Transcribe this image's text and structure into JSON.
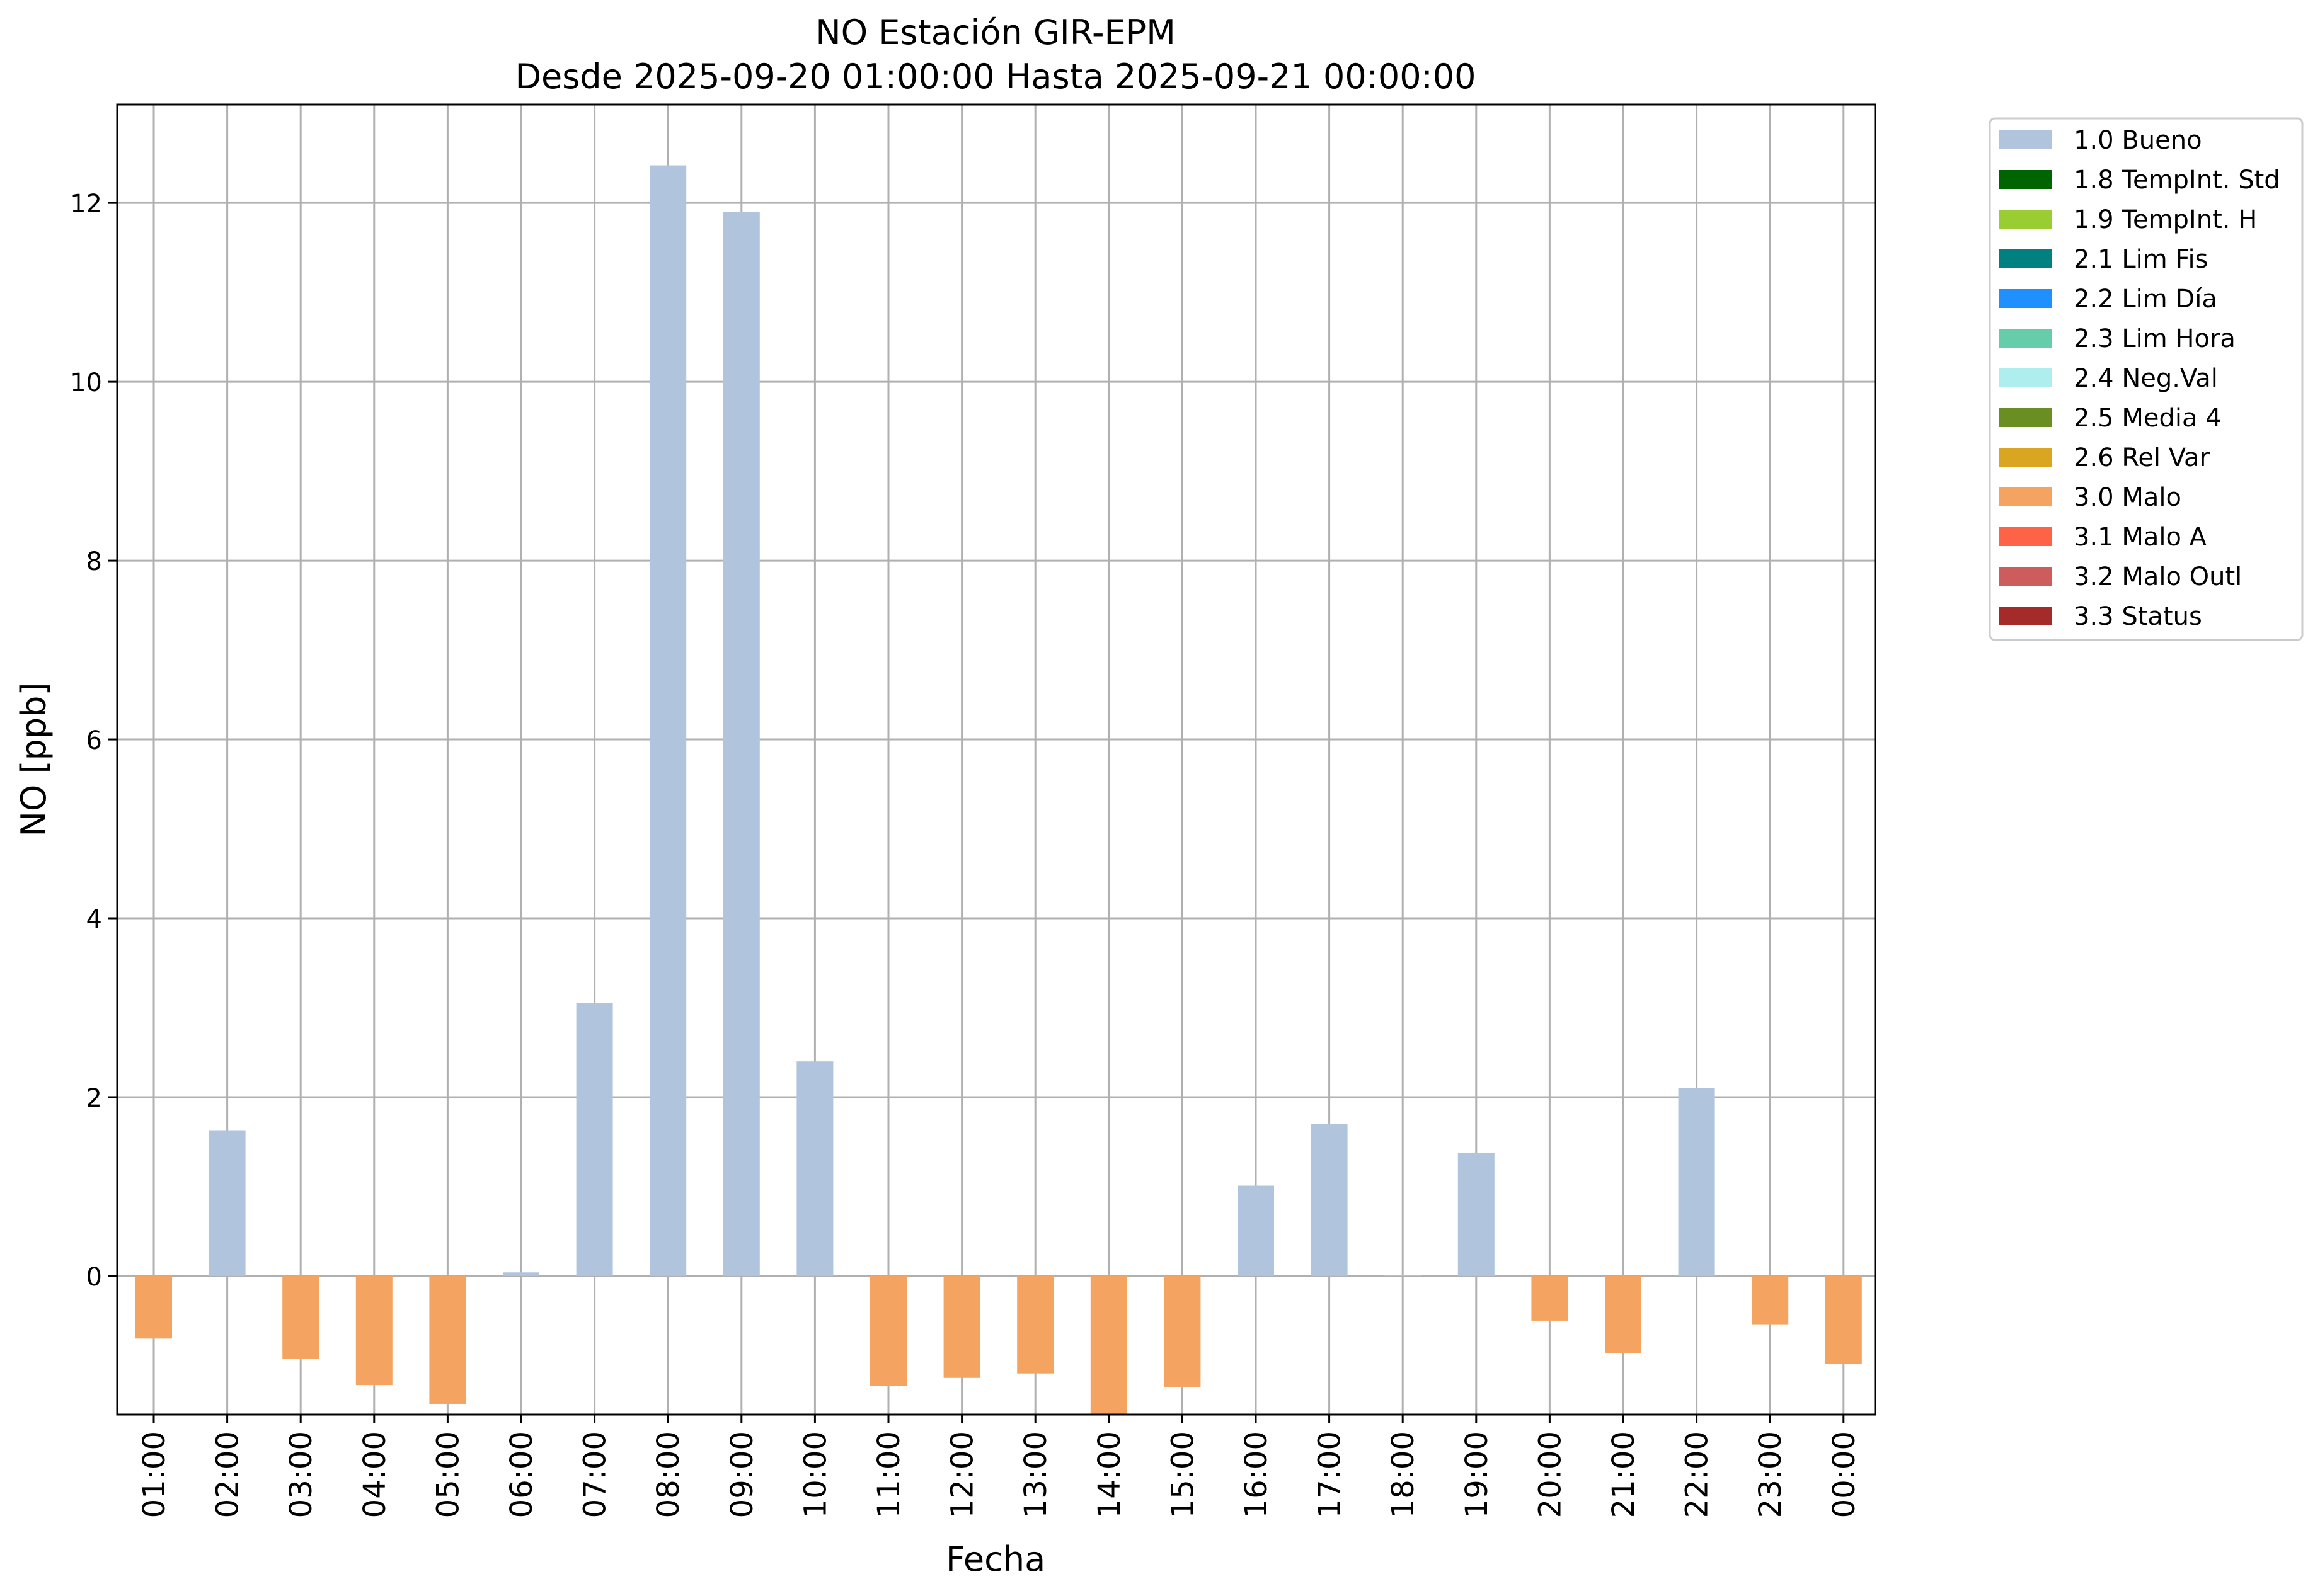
{
  "chart_data": {
    "type": "bar",
    "title": "NO Estación GIR-EPM",
    "subtitle": "Desde 2025-09-20 01:00:00 Hasta 2025-09-21 00:00:00",
    "xlabel": "Fecha",
    "ylabel": "NO [ppb]",
    "ylim": [
      -1.55,
      13.1
    ],
    "yticks": [
      0,
      2,
      4,
      6,
      8,
      10,
      12
    ],
    "grid": true,
    "legend_position": "outside-top-right",
    "categories": [
      "01:00",
      "02:00",
      "03:00",
      "04:00",
      "05:00",
      "06:00",
      "07:00",
      "08:00",
      "09:00",
      "10:00",
      "11:00",
      "12:00",
      "13:00",
      "14:00",
      "15:00",
      "16:00",
      "17:00",
      "18:00",
      "19:00",
      "20:00",
      "21:00",
      "22:00",
      "23:00",
      "00:00"
    ],
    "values": [
      -0.7,
      1.63,
      -0.93,
      -1.22,
      -1.43,
      0.04,
      3.05,
      12.42,
      11.9,
      2.4,
      -1.23,
      -1.14,
      -1.09,
      -1.55,
      -1.24,
      1.01,
      1.7,
      0.01,
      1.38,
      -0.5,
      -0.86,
      2.1,
      -0.54,
      -0.98
    ],
    "flags": [
      "3.0 Malo",
      "1.0 Bueno",
      "3.0 Malo",
      "3.0 Malo",
      "3.0 Malo",
      "1.0 Bueno",
      "1.0 Bueno",
      "1.0 Bueno",
      "1.0 Bueno",
      "1.0 Bueno",
      "3.0 Malo",
      "3.0 Malo",
      "3.0 Malo",
      "3.0 Malo",
      "3.0 Malo",
      "1.0 Bueno",
      "1.0 Bueno",
      "1.0 Bueno",
      "1.0 Bueno",
      "3.0 Malo",
      "3.0 Malo",
      "1.0 Bueno",
      "3.0 Malo",
      "3.0 Malo"
    ],
    "legend": [
      {
        "label": "1.0 Bueno",
        "color": "#b0c4de"
      },
      {
        "label": "1.8 TempInt. Std",
        "color": "#006400"
      },
      {
        "label": "1.9 TempInt. H",
        "color": "#9acd32"
      },
      {
        "label": "2.1 Lim Fis",
        "color": "#008080"
      },
      {
        "label": "2.2 Lim Día",
        "color": "#1e90ff"
      },
      {
        "label": "2.3 Lim Hora",
        "color": "#66cdaa"
      },
      {
        "label": "2.4 Neg.Val",
        "color": "#afeeee"
      },
      {
        "label": "2.5 Media 4",
        "color": "#6b8e23"
      },
      {
        "label": "2.6 Rel Var",
        "color": "#daa520"
      },
      {
        "label": "3.0 Malo",
        "color": "#f4a460"
      },
      {
        "label": "3.1 Malo A",
        "color": "#ff6347"
      },
      {
        "label": "3.2 Malo Outl",
        "color": "#cd5c5c"
      },
      {
        "label": "3.3 Status",
        "color": "#a52a2a"
      }
    ]
  }
}
